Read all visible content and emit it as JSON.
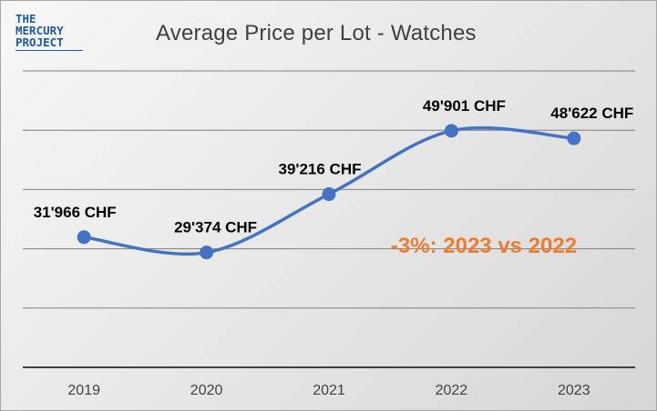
{
  "logo": {
    "line1": "THE",
    "line2": "MERCURY",
    "line3": "PROJECT"
  },
  "colors": {
    "series": "#4472c4",
    "annotation": "#ed7d31"
  },
  "chart_data": {
    "type": "line",
    "title": "Average Price per Lot - Watches",
    "categories": [
      "2019",
      "2020",
      "2021",
      "2022",
      "2023"
    ],
    "values": [
      31966,
      29374,
      39216,
      49901,
      48622
    ],
    "data_labels": [
      "31'966 CHF",
      "29'374 CHF",
      "39'216 CHF",
      "49'901 CHF",
      "48'622 CHF"
    ],
    "ylim": [
      10000,
      60000
    ],
    "grid": true,
    "smooth": true,
    "annotation": "-3%: 2023 vs 2022"
  }
}
